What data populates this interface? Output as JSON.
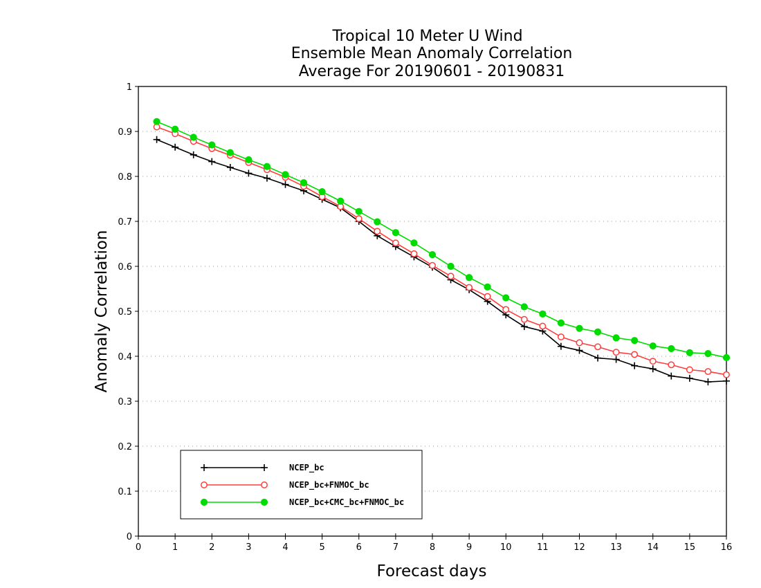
{
  "chart_data": {
    "type": "line",
    "title": [
      "Tropical 10 Meter U Wind",
      "Ensemble Mean Anomaly Correlation",
      "Average For 20190601 - 20190831"
    ],
    "xlabel": "Forecast days",
    "ylabel": "Anomaly Correlation",
    "xlim": [
      0,
      16
    ],
    "ylim": [
      0,
      1
    ],
    "xticks": [
      "0",
      "1",
      "2",
      "3",
      "4",
      "5",
      "6",
      "7",
      "8",
      "9",
      "10",
      "11",
      "12",
      "13",
      "14",
      "15",
      "16"
    ],
    "yticks": [
      "0",
      "0.1",
      "0.2",
      "0.3",
      "0.4",
      "0.5",
      "0.6",
      "0.7",
      "0.8",
      "0.9",
      "1"
    ],
    "grid": true,
    "legend_position": "bottom-left",
    "x": [
      0.5,
      1,
      1.5,
      2,
      2.5,
      3,
      3.5,
      4,
      4.5,
      5,
      5.5,
      6,
      6.5,
      7,
      7.5,
      8,
      8.5,
      9,
      9.5,
      10,
      10.5,
      11,
      11.5,
      12,
      12.5,
      13,
      13.5,
      14,
      14.5,
      15,
      15.5,
      16
    ],
    "series": [
      {
        "name": "NCEP_bc",
        "color": "#000000",
        "marker": "plus",
        "values": [
          0.882,
          0.865,
          0.848,
          0.833,
          0.82,
          0.807,
          0.796,
          0.782,
          0.768,
          0.749,
          0.73,
          0.7,
          0.668,
          0.644,
          0.621,
          0.598,
          0.57,
          0.548,
          0.522,
          0.492,
          0.466,
          0.456,
          0.422,
          0.413,
          0.396,
          0.393,
          0.379,
          0.372,
          0.356,
          0.351,
          0.343,
          0.345
        ]
      },
      {
        "name": "NCEP_bc+FNMOC_bc",
        "color": "#ff3c3c",
        "marker": "open-circle",
        "values": [
          0.91,
          0.895,
          0.878,
          0.862,
          0.847,
          0.831,
          0.815,
          0.798,
          0.778,
          0.755,
          0.733,
          0.706,
          0.678,
          0.652,
          0.628,
          0.602,
          0.578,
          0.553,
          0.533,
          0.504,
          0.482,
          0.467,
          0.443,
          0.43,
          0.421,
          0.409,
          0.404,
          0.389,
          0.381,
          0.37,
          0.366,
          0.359
        ]
      },
      {
        "name": "NCEP_bc+CMC_bc+FNMOC_bc",
        "color": "#00dc00",
        "marker": "filled-circle",
        "values": [
          0.922,
          0.905,
          0.887,
          0.87,
          0.853,
          0.837,
          0.822,
          0.804,
          0.786,
          0.766,
          0.745,
          0.722,
          0.699,
          0.675,
          0.652,
          0.626,
          0.6,
          0.575,
          0.554,
          0.53,
          0.51,
          0.494,
          0.474,
          0.462,
          0.454,
          0.441,
          0.435,
          0.423,
          0.417,
          0.408,
          0.406,
          0.397
        ]
      }
    ]
  }
}
